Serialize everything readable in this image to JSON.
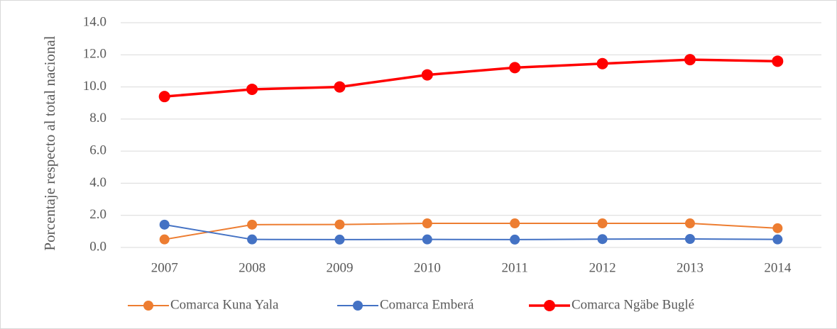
{
  "chart_data": {
    "type": "line",
    "y_label": "Porcentaje respecto al total nacional",
    "categories": [
      "2007",
      "2008",
      "2009",
      "2010",
      "2011",
      "2012",
      "2013",
      "2014"
    ],
    "series": [
      {
        "name": "Comarca Kuna Yala",
        "color": "#ED7D31",
        "values": [
          0.5,
          1.42,
          1.43,
          1.5,
          1.5,
          1.5,
          1.5,
          1.2
        ]
      },
      {
        "name": "Comarca Emberá",
        "color": "#4472C4",
        "values": [
          1.42,
          0.5,
          0.49,
          0.5,
          0.49,
          0.52,
          0.53,
          0.5
        ]
      },
      {
        "name": "Comarca Ngäbe Buglé",
        "color": "#FF0000",
        "values": [
          9.4,
          9.85,
          10.0,
          10.75,
          11.2,
          11.45,
          11.7,
          11.6
        ]
      }
    ],
    "ylim": [
      0,
      14
    ],
    "yticks": [
      {
        "value": 0,
        "label": "0.0"
      },
      {
        "value": 2,
        "label": "2.0"
      },
      {
        "value": 4,
        "label": "4.0"
      },
      {
        "value": 6,
        "label": "6.0"
      },
      {
        "value": 8,
        "label": "8.0"
      },
      {
        "value": 10,
        "label": "10.0"
      },
      {
        "value": 12,
        "label": "12.0"
      },
      {
        "value": 14,
        "label": "14.0"
      }
    ],
    "grid": true,
    "legend": "bottom"
  }
}
